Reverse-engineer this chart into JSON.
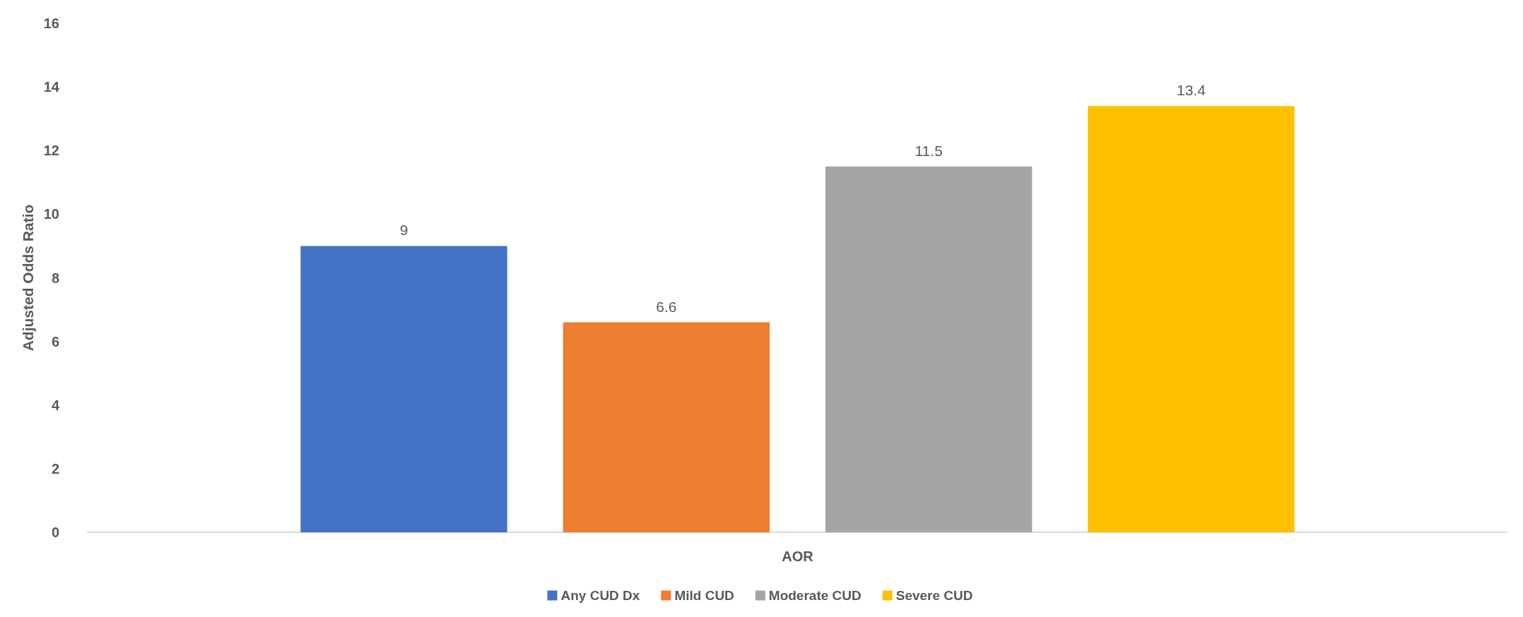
{
  "chart_data": {
    "type": "bar",
    "ylabel": "Adjusted Odds Ratio",
    "categories": [
      "AOR"
    ],
    "series": [
      {
        "name": "Any CUD Dx",
        "color": "#4472c4",
        "values": [
          9
        ]
      },
      {
        "name": "Mild CUD",
        "color": "#ed7d31",
        "values": [
          6.6
        ]
      },
      {
        "name": "Moderate CUD",
        "color": "#a5a5a5",
        "values": [
          11.5
        ]
      },
      {
        "name": "Severe CUD",
        "color": "#ffc000",
        "values": [
          13.4
        ]
      }
    ],
    "ylim": [
      0,
      16
    ],
    "yticks": [
      0,
      2,
      4,
      6,
      8,
      10,
      12,
      14,
      16
    ],
    "grid": false,
    "legend": "bottom",
    "data_labels": true
  }
}
